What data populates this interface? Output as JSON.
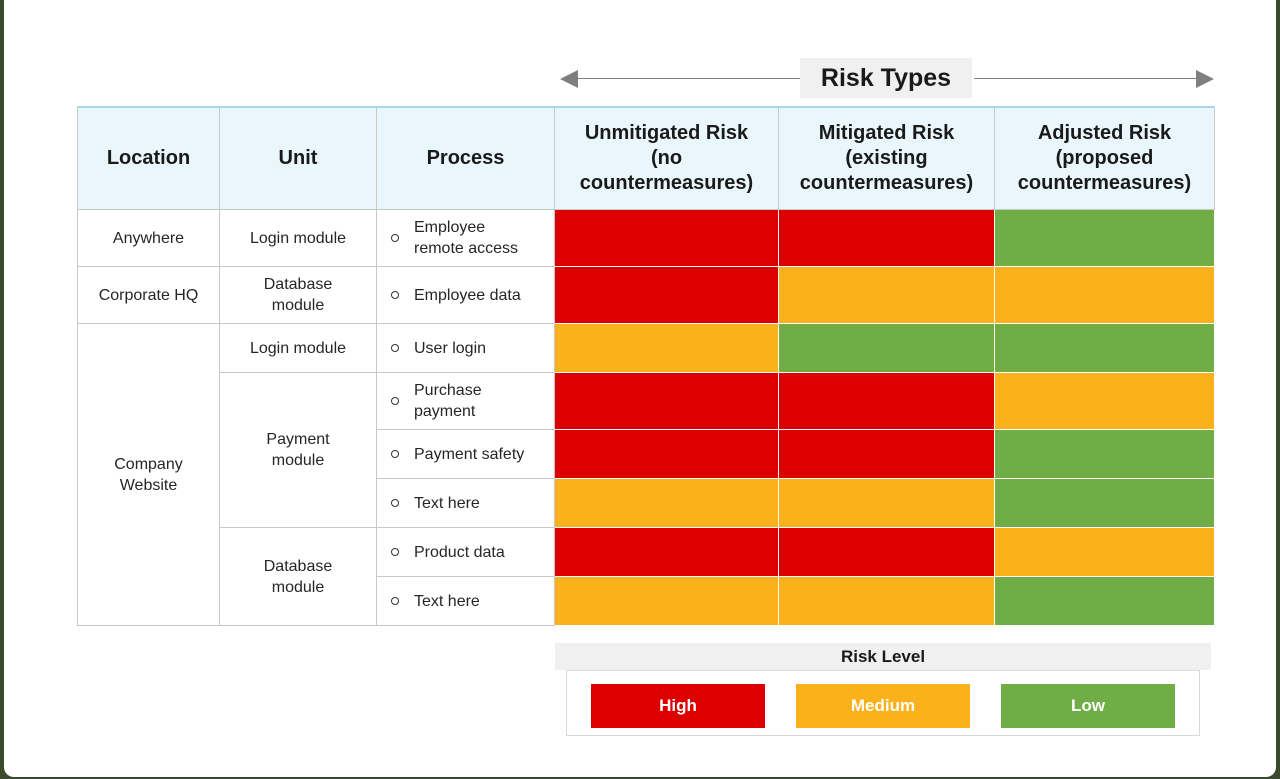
{
  "header": {
    "risk_types": "Risk Types"
  },
  "columns": {
    "location": "Location",
    "unit": "Unit",
    "process": "Process",
    "unmitigated": [
      "Unmitigated Risk",
      "(no",
      "countermeasures)"
    ],
    "mitigated": [
      "Mitigated Risk",
      "(existing",
      "countermeasures)"
    ],
    "adjusted": [
      "Adjusted Risk",
      "(proposed",
      "countermeasures)"
    ]
  },
  "locations": [
    "Anywhere",
    "Corporate HQ",
    "Company Website"
  ],
  "units": [
    [
      "Login module"
    ],
    [
      "Database",
      "module"
    ],
    [
      "Login module"
    ],
    [
      "Payment",
      "module"
    ],
    [
      "Database",
      "module"
    ]
  ],
  "processes": [
    [
      "Employee",
      "remote access"
    ],
    [
      "Employee data"
    ],
    [
      "User login"
    ],
    [
      "Purchase",
      "payment"
    ],
    [
      "Payment safety"
    ],
    [
      "Text here"
    ],
    [
      "Product data"
    ],
    [
      "Text here"
    ]
  ],
  "risk_levels": [
    [
      "High",
      "High",
      "Low"
    ],
    [
      "High",
      "Medium",
      "Medium"
    ],
    [
      "Medium",
      "Low",
      "Low"
    ],
    [
      "High",
      "High",
      "Medium"
    ],
    [
      "High",
      "High",
      "Low"
    ],
    [
      "Medium",
      "Medium",
      "Low"
    ],
    [
      "High",
      "High",
      "Medium"
    ],
    [
      "Medium",
      "Medium",
      "Low"
    ]
  ],
  "colors": {
    "high": "#dd0000",
    "medium": "#fbb11b",
    "low": "#70ad47"
  },
  "legend": {
    "title": "Risk Level",
    "high": "High",
    "medium": "Medium",
    "low": "Low"
  }
}
